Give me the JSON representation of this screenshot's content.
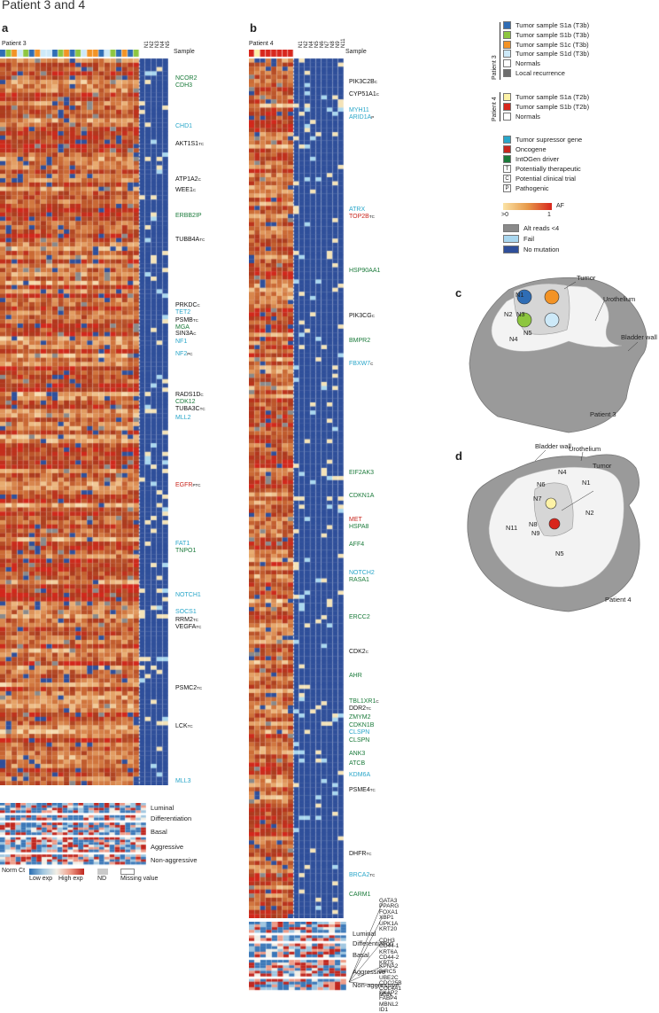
{
  "figure_title": "Patient 3 and 4",
  "panels": {
    "a": "a",
    "b": "b",
    "c": "c",
    "d": "d"
  },
  "panel_a": {
    "patient_label": "Patient 3",
    "sample_label": "Sample",
    "normal_labels": [
      "N1",
      "N2",
      "N3",
      "N4",
      "N5"
    ],
    "genes": [
      {
        "name": "NCOR2",
        "color": "#1a7a3a",
        "sup": ""
      },
      {
        "name": "CDH3",
        "color": "#1a7a3a",
        "sup": ""
      },
      {
        "name": "CHD1",
        "color": "#29a6c9",
        "sup": ""
      },
      {
        "name": "AKT1S1",
        "color": "#111111",
        "sup": "TC"
      },
      {
        "name": "ATP1A2",
        "color": "#111111",
        "sup": "C"
      },
      {
        "name": "WEE1",
        "color": "#111111",
        "sup": "C"
      },
      {
        "name": "ERBB2IP",
        "color": "#1a7a3a",
        "sup": ""
      },
      {
        "name": "TUBB4A",
        "color": "#111111",
        "sup": "TC"
      },
      {
        "name": "PRKDC",
        "color": "#111111",
        "sup": "C"
      },
      {
        "name": "TET2",
        "color": "#29a6c9",
        "sup": ""
      },
      {
        "name": "PSMB",
        "color": "#111111",
        "sup": "TC"
      },
      {
        "name": "MGA",
        "color": "#1a7a3a",
        "sup": ""
      },
      {
        "name": "SIN3A",
        "color": "#111111",
        "sup": "C"
      },
      {
        "name": "NF1",
        "color": "#29a6c9",
        "sup": ""
      },
      {
        "name": "NF2",
        "color": "#29a6c9",
        "sup": "PC"
      },
      {
        "name": "RADS1D",
        "color": "#111111",
        "sup": "C"
      },
      {
        "name": "CDK12",
        "color": "#1a7a3a",
        "sup": ""
      },
      {
        "name": "TUBA3C",
        "color": "#111111",
        "sup": "TC"
      },
      {
        "name": "MLL2",
        "color": "#29a6c9",
        "sup": ""
      },
      {
        "name": "EGFR",
        "color": "#c8261e",
        "sup": "PTC"
      },
      {
        "name": "FAT1",
        "color": "#29a6c9",
        "sup": ""
      },
      {
        "name": "TNPO1",
        "color": "#1a7a3a",
        "sup": ""
      },
      {
        "name": "NOTCH1",
        "color": "#29a6c9",
        "sup": ""
      },
      {
        "name": "SOCS1",
        "color": "#29a6c9",
        "sup": ""
      },
      {
        "name": "RRM2",
        "color": "#111111",
        "sup": "TC"
      },
      {
        "name": "VEGFA",
        "color": "#111111",
        "sup": "TC"
      },
      {
        "name": "PSMC2",
        "color": "#111111",
        "sup": "TC"
      },
      {
        "name": "LCK",
        "color": "#111111",
        "sup": "TC"
      },
      {
        "name": "MLL3",
        "color": "#29a6c9",
        "sup": ""
      }
    ],
    "signatures": [
      "Luminal",
      "Differentiation",
      "Basal",
      "Aggressive",
      "Non-aggressive"
    ],
    "scale": {
      "title": "Norm Ct",
      "low": "Low exp",
      "high": "High exp",
      "nd": "ND",
      "missing": "Missing value"
    }
  },
  "panel_b": {
    "patient_label": "Patient 4",
    "sample_label": "Sample",
    "genes": [
      {
        "name": "PIK3C2B",
        "color": "#111111",
        "sup": "C"
      },
      {
        "name": "CYP51A1",
        "color": "#111111",
        "sup": "C"
      },
      {
        "name": "MYH11",
        "color": "#29a6c9",
        "sup": ""
      },
      {
        "name": "ARID1A",
        "color": "#29a6c9",
        "sup": "P"
      },
      {
        "name": "ATRX",
        "color": "#29a6c9",
        "sup": ""
      },
      {
        "name": "TOP2B",
        "color": "#c8261e",
        "sup": "TC"
      },
      {
        "name": "HSP90AA1",
        "color": "#1a7a3a",
        "sup": ""
      },
      {
        "name": "PIK3CG",
        "color": "#111111",
        "sup": "C"
      },
      {
        "name": "BMPR2",
        "color": "#1a7a3a",
        "sup": ""
      },
      {
        "name": "FBXW7",
        "color": "#29a6c9",
        "sup": "C"
      },
      {
        "name": "EIF2AK3",
        "color": "#1a7a3a",
        "sup": ""
      },
      {
        "name": "CDKN1A",
        "color": "#1a7a3a",
        "sup": ""
      },
      {
        "name": "MET",
        "color": "#c8261e",
        "sup": ""
      },
      {
        "name": "HSPA8",
        "color": "#1a7a3a",
        "sup": ""
      },
      {
        "name": "AFF4",
        "color": "#1a7a3a",
        "sup": ""
      },
      {
        "name": "NOTCH2",
        "color": "#29a6c9",
        "sup": ""
      },
      {
        "name": "RASA1",
        "color": "#1a7a3a",
        "sup": ""
      },
      {
        "name": "ERCC2",
        "color": "#1a7a3a",
        "sup": ""
      },
      {
        "name": "CDK2",
        "color": "#111111",
        "sup": "C"
      },
      {
        "name": "AHR",
        "color": "#1a7a3a",
        "sup": ""
      },
      {
        "name": "TBL1XR1",
        "color": "#1a7a3a",
        "sup": "C"
      },
      {
        "name": "DDR2",
        "color": "#111111",
        "sup": "TC"
      },
      {
        "name": "ZMYM2",
        "color": "#1a7a3a",
        "sup": ""
      },
      {
        "name": "CDKN1B",
        "color": "#1a7a3a",
        "sup": ""
      },
      {
        "name": "CLSPN",
        "color": "#29a6c9",
        "sup": ""
      },
      {
        "name": "CLSPN",
        "color": "#1a7a3a",
        "sup": ""
      },
      {
        "name": "ANK3",
        "color": "#1a7a3a",
        "sup": ""
      },
      {
        "name": "ATCB",
        "color": "#1a7a3a",
        "sup": ""
      },
      {
        "name": "KDM6A",
        "color": "#29a6c9",
        "sup": ""
      },
      {
        "name": "PSME4",
        "color": "#111111",
        "sup": "TC"
      },
      {
        "name": "DHFR",
        "color": "#111111",
        "sup": "TC"
      },
      {
        "name": "BRCA2",
        "color": "#29a6c9",
        "sup": "TC"
      },
      {
        "name": "CARM1",
        "color": "#1a7a3a",
        "sup": ""
      }
    ],
    "signatures": [
      "Luminal",
      "Differentiation",
      "Basal",
      "Aggressive",
      "Non-aggressive"
    ],
    "signature_genes": [
      "GATA3",
      "PPARG",
      "FOXA1",
      "XBP1",
      "UPK1A",
      "KRT20",
      "CDH3",
      "CD44-1",
      "KRT6A",
      "CD44-2",
      "KRT5",
      "KPNA2",
      "BIRC5",
      "UBE2C",
      "CDC25B",
      "COL4A1",
      "MSN",
      "SKAP2",
      "FABP4",
      "MBNL2",
      "ID1"
    ]
  },
  "legend": {
    "patient3_label": "Patient 3",
    "patient4_label": "Patient 4",
    "patient3_samples": [
      {
        "label": "Tumor sample S1a (T3b)",
        "color": "#2f6db5"
      },
      {
        "label": "Tumor sample S1b (T3b)",
        "color": "#8dc63f"
      },
      {
        "label": "Tumor sample S1c (T3b)",
        "color": "#f39325"
      },
      {
        "label": "Tumor sample S1d (T3b)",
        "color": "#cde9f8"
      },
      {
        "label": "Normals",
        "color": "#ffffff"
      },
      {
        "label": "Local recurrence",
        "color": "#6e6e6e"
      }
    ],
    "patient4_samples": [
      {
        "label": "Tumor sample S1a (T2b)",
        "color": "#fdf2a6"
      },
      {
        "label": "Tumor sample S1b (T2b)",
        "color": "#d8261c"
      },
      {
        "label": "Normals",
        "color": "#ffffff"
      }
    ],
    "gene_types": [
      {
        "label": "Tumor supressor gene",
        "color": "#29a6c9"
      },
      {
        "label": "Oncogene",
        "color": "#c8261e"
      },
      {
        "label": "IntOGen driver",
        "color": "#1a7a3a"
      }
    ],
    "markers": [
      {
        "symbol": "T",
        "label": "Potentially therapeutic"
      },
      {
        "symbol": "C",
        "label": "Potential clinical trial"
      },
      {
        "symbol": "P",
        "label": "Pathogenic"
      }
    ],
    "af": {
      "title": "AF",
      "min": ">0",
      "max": "1"
    },
    "mutation_states": [
      {
        "label": "Alt reads <4",
        "color": "#8a8a8a"
      },
      {
        "label": "Fail",
        "color": "#a9d7ef"
      },
      {
        "label": "No mutation",
        "color": "#2f4f9a"
      }
    ]
  },
  "diagram_c": {
    "labels": {
      "tumor": "Tumor",
      "urothelium": "Urothelium",
      "bladder": "Bladder wall",
      "patient": "Patient 3"
    },
    "normals": [
      "N1",
      "N2",
      "N3",
      "N4",
      "N5"
    ]
  },
  "diagram_d": {
    "labels": {
      "tumor": "Tumor",
      "urothelium": "Urothelium",
      "bladder": "Bladder wall",
      "patient": "Patient 4"
    },
    "normals": [
      "N1",
      "N2",
      "N4",
      "N5",
      "N6",
      "N7",
      "N8",
      "N9",
      "N11"
    ]
  }
}
